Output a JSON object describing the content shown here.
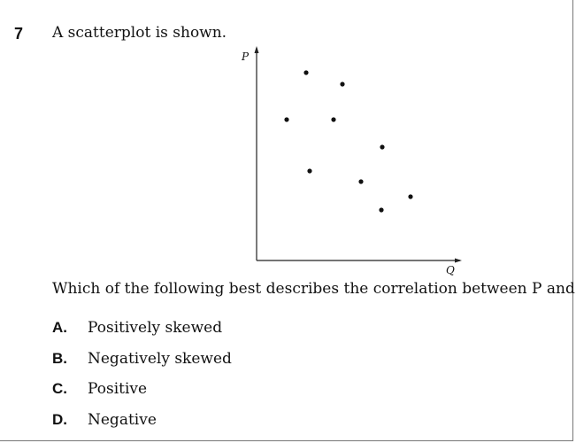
{
  "question": {
    "number": "7",
    "stem": "A scatterplot is shown.",
    "prompt": "Which of the following best describes the correlation between P and Q?"
  },
  "scatterplot": {
    "y_axis_label": "P",
    "x_axis_label": "Q",
    "point_count": 9
  },
  "options": [
    {
      "letter": "A.",
      "text": "Positively skewed"
    },
    {
      "letter": "B.",
      "text": "Negatively skewed"
    },
    {
      "letter": "C.",
      "text": "Positive"
    },
    {
      "letter": "D.",
      "text": "Negative"
    }
  ]
}
